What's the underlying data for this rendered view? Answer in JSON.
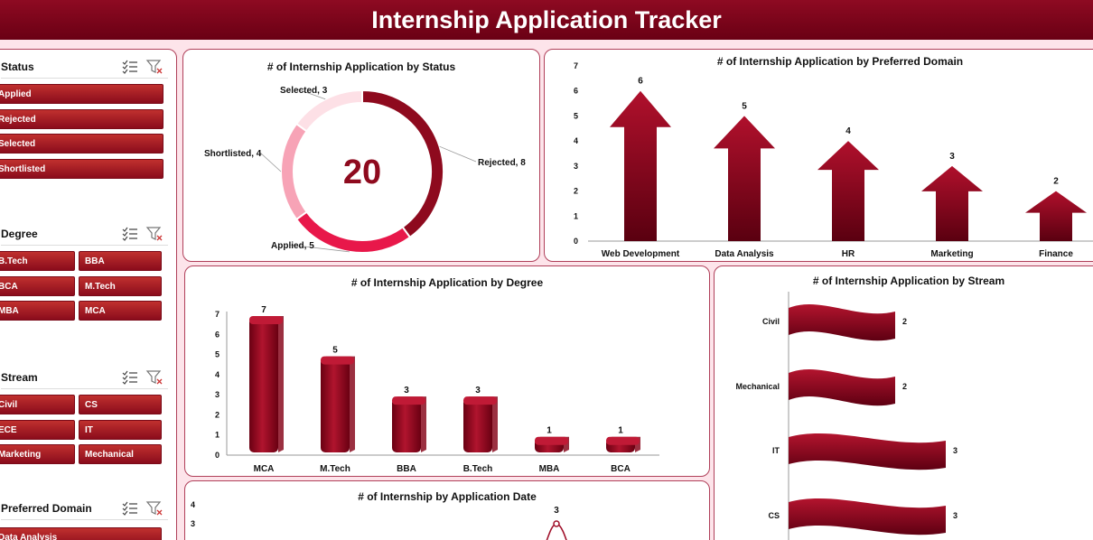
{
  "header": {
    "title": "Internship Application Tracker"
  },
  "colors": {
    "dark_red": "#7a0014",
    "red": "#b0102c",
    "pink": "#fbc0cc",
    "light_pink": "#fde4ea"
  },
  "slicers": [
    {
      "title": "Status",
      "items": [
        "Applied",
        "Rejected",
        "Selected",
        "Shortlisted"
      ]
    },
    {
      "title": "Degree",
      "items": [
        "B.Tech",
        "BBA",
        "BCA",
        "M.Tech",
        "MBA",
        "MCA"
      ]
    },
    {
      "title": "Stream",
      "items": [
        "Civil",
        "CS",
        "ECE",
        "IT",
        "Marketing",
        "Mechanical"
      ]
    },
    {
      "title": "Preferred Domain",
      "items": [
        "Data Analysis"
      ]
    }
  ],
  "status_chart": {
    "title": "# of Internship Application by Status",
    "total": "20",
    "chart_data": {
      "type": "pie",
      "categories": [
        "Rejected",
        "Applied",
        "Shortlisted",
        "Selected"
      ],
      "values": [
        8,
        5,
        4,
        3
      ],
      "labels": [
        "Rejected, 8",
        "Applied, 5",
        "Shortlisted, 4",
        "Selected, 3"
      ],
      "colors": [
        "#8e0a1e",
        "#e8184a",
        "#f7a3b6",
        "#fde0e6"
      ]
    }
  },
  "domain_chart": {
    "title": "# of Internship Application by Preferred Domain",
    "chart_data": {
      "type": "bar",
      "categories": [
        "Web Development",
        "Data Analysis",
        "HR",
        "Marketing",
        "Finance"
      ],
      "values": [
        6,
        5,
        4,
        3,
        2
      ],
      "yticks": [
        "0",
        "1",
        "2",
        "3",
        "4",
        "5",
        "6",
        "7"
      ],
      "ylim": [
        0,
        7
      ]
    }
  },
  "degree_chart": {
    "title": "# of Internship Application by Degree",
    "chart_data": {
      "type": "bar",
      "categories": [
        "MCA",
        "M.Tech",
        "BBA",
        "B.Tech",
        "MBA",
        "BCA"
      ],
      "values": [
        7,
        5,
        3,
        3,
        1,
        1
      ],
      "yticks": [
        "0",
        "1",
        "2",
        "3",
        "4",
        "5",
        "6",
        "7"
      ],
      "ylim": [
        0,
        7
      ]
    }
  },
  "stream_chart": {
    "title": "# of Internship Application by Stream",
    "chart_data": {
      "type": "bar",
      "categories": [
        "Civil",
        "Mechanical",
        "IT",
        "CS"
      ],
      "values": [
        2,
        2,
        3,
        3
      ]
    }
  },
  "date_chart": {
    "title": "# of Internship by Application Date",
    "chart_data": {
      "type": "line",
      "yticks": [
        "3",
        "4"
      ],
      "peak_label": "3"
    }
  }
}
